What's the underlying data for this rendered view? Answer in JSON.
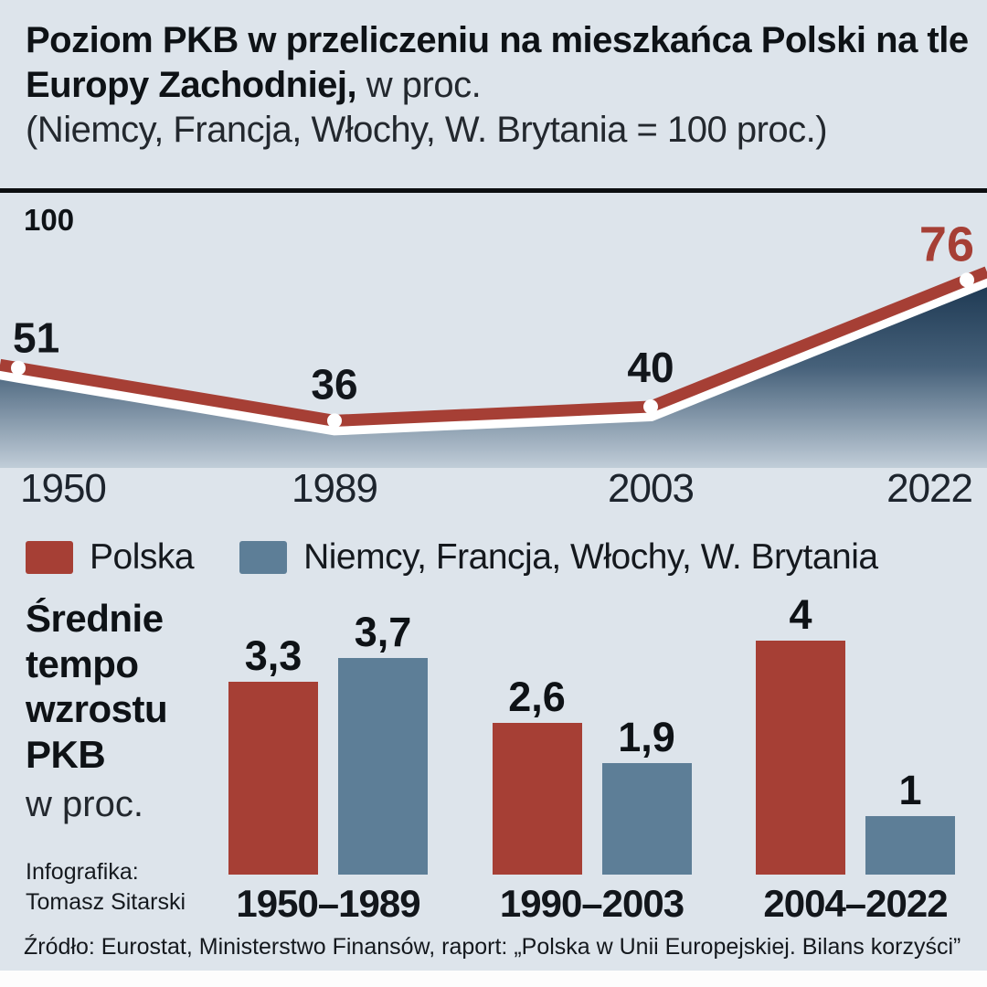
{
  "colors": {
    "background": "#dde4eb",
    "red": "#a63f35",
    "blue": "#5d7e97",
    "area_top": "#18334d",
    "area_mid": "#46617a",
    "area_bottom": "#c3cfda",
    "text_dark": "#12161b"
  },
  "header": {
    "title_bold": "Poziom PKB w przeliczeniu na mieszkańca Polski na tle Europy Zachodniej,",
    "title_unit": " w proc.",
    "subtitle": "(Niemcy, Francja, Włochy, W. Brytania = 100 proc.)"
  },
  "legend": [
    {
      "label": "Polska",
      "color": "#a63f35"
    },
    {
      "label": "Niemcy, Francja, Włochy, W. Brytania",
      "color": "#5d7e97"
    }
  ],
  "bar_section": {
    "title": "Średnie tempo wzrostu PKB",
    "unit": "w proc."
  },
  "credits": {
    "line1": "Infografika:",
    "line2": "Tomasz Sitarski"
  },
  "source": "Źródło: Eurostat, Ministerstwo Finansów, raport: „Polska w Unii Europejskiej. Bilans korzyści”",
  "chart_data": [
    {
      "type": "line",
      "title": "Poziom PKB w przeliczeniu na mieszkańca Polski na tle Europy Zachodniej, w proc.",
      "series_name": "Polska",
      "x": [
        "1950",
        "1989",
        "2003",
        "2022"
      ],
      "values": [
        51,
        36,
        40,
        76
      ],
      "reference": {
        "label": "100",
        "value": 100
      },
      "ylim": [
        0,
        100
      ],
      "unit": "proc."
    },
    {
      "type": "bar",
      "title": "Średnie tempo wzrostu PKB, w proc.",
      "categories": [
        "1950–1989",
        "1990–2003",
        "2004–2022"
      ],
      "series": [
        {
          "name": "Polska",
          "color": "#a63f35",
          "values": [
            3.3,
            2.6,
            4
          ]
        },
        {
          "name": "Niemcy, Francja, Włochy, W. Brytania",
          "color": "#5d7e97",
          "values": [
            3.7,
            1.9,
            1
          ]
        }
      ],
      "ylim": [
        0,
        4.3
      ]
    }
  ]
}
